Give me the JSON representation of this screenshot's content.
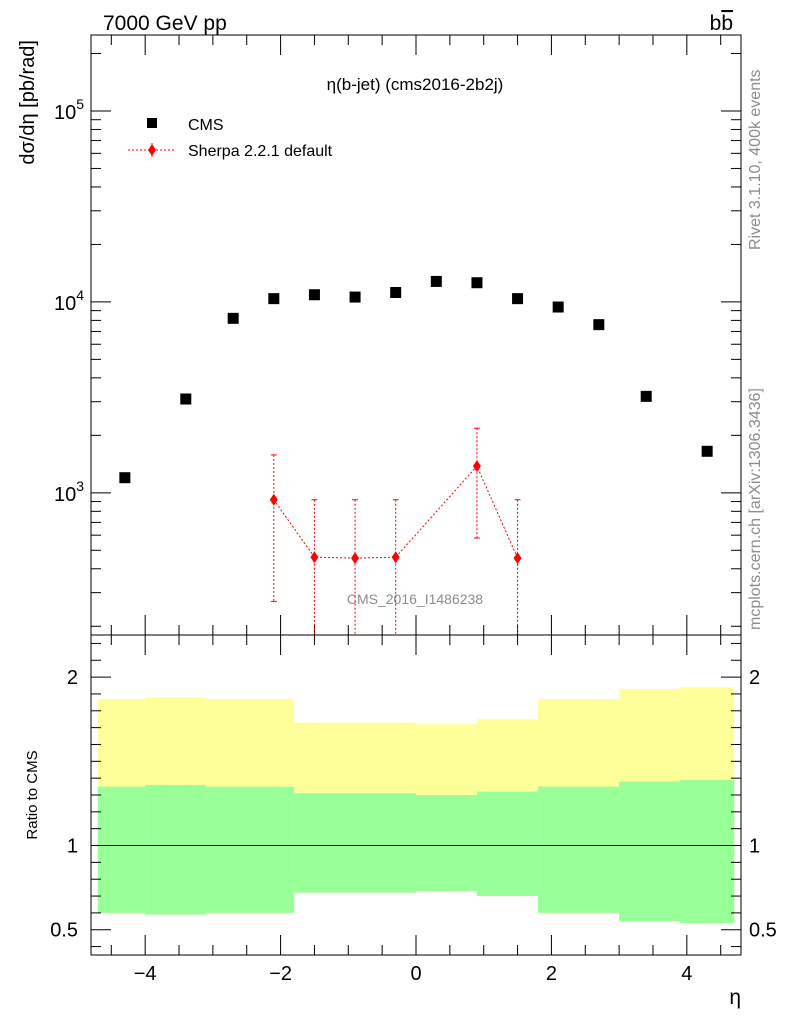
{
  "header": {
    "left": "7000 GeV pp",
    "right_base": "b",
    "right_bar": "b"
  },
  "side_texts": {
    "rivet": "Rivet 3.1.10,  400k events",
    "mcplots": "mcplots.cern.ch [arXiv:1306.3436]"
  },
  "chart_data": [
    {
      "type": "scatter",
      "title": "η(b-jet) (cms2016-2b2j)",
      "ylabel": "dσ/dη [pb/rad]",
      "yscale": "log",
      "ylim": [
        180,
        250000
      ],
      "xlim": [
        -4.8,
        4.8
      ],
      "y_ticks": [
        {
          "value": 1000,
          "base": "10",
          "exp": "3"
        },
        {
          "value": 10000,
          "base": "10",
          "exp": "4"
        },
        {
          "value": 100000,
          "base": "10",
          "exp": "5"
        }
      ],
      "watermark": "CMS_2016_I1486238",
      "legend_position": "top-left",
      "series": [
        {
          "name": "CMS",
          "color": "#000000",
          "marker": "square",
          "x": [
            -4.3,
            -3.4,
            -2.7,
            -2.1,
            -1.5,
            -0.9,
            -0.3,
            0.3,
            0.9,
            1.5,
            2.1,
            2.7,
            3.4,
            4.3
          ],
          "y": [
            1200,
            3100,
            8200,
            10400,
            10900,
            10600,
            11200,
            12800,
            12600,
            10400,
            9400,
            7600,
            3200,
            1650
          ]
        },
        {
          "name": "Sherpa 2.2.1 default",
          "color": "#ff0000",
          "marker": "diamond",
          "line": "dotted",
          "x": [
            -2.1,
            -1.5,
            -0.9,
            -0.3,
            0.9,
            1.5
          ],
          "y": [
            920,
            460,
            455,
            460,
            1380,
            455
          ],
          "err_low": [
            270,
            100,
            100,
            100,
            580,
            100
          ],
          "err_high": [
            1580,
            920,
            920,
            920,
            2180,
            920
          ]
        }
      ]
    },
    {
      "type": "area",
      "ylabel": "Ratio to CMS",
      "xlabel": "η",
      "xlim": [
        -4.8,
        4.8
      ],
      "ylim": [
        0.35,
        2.25
      ],
      "y_ticks": [
        {
          "value": 0.5,
          "label": "0.5"
        },
        {
          "value": 1,
          "label": "1"
        },
        {
          "value": 2,
          "label": "2"
        }
      ],
      "x_ticks": [
        {
          "value": -4,
          "label": "−4"
        },
        {
          "value": -2,
          "label": "−2"
        },
        {
          "value": 0,
          "label": "0"
        },
        {
          "value": 2,
          "label": "2"
        },
        {
          "value": 4,
          "label": "4"
        }
      ],
      "reference_line": 1,
      "bins": [
        -4.7,
        -4.0,
        -3.1,
        -1.8,
        0.0,
        0.9,
        1.8,
        3.0,
        3.9,
        4.7
      ],
      "bands": [
        {
          "color": "#ffff99",
          "low": [
            0.6,
            0.59,
            0.6,
            0.72,
            0.73,
            0.7,
            0.6,
            0.55,
            0.54
          ],
          "high": [
            1.87,
            1.88,
            1.87,
            1.73,
            1.72,
            1.75,
            1.87,
            1.93,
            1.94
          ]
        },
        {
          "color": "#99ff99",
          "low": [
            0.6,
            0.59,
            0.6,
            0.72,
            0.73,
            0.7,
            0.6,
            0.55,
            0.54
          ],
          "high": [
            1.35,
            1.36,
            1.35,
            1.31,
            1.3,
            1.32,
            1.35,
            1.38,
            1.39
          ]
        }
      ]
    }
  ]
}
